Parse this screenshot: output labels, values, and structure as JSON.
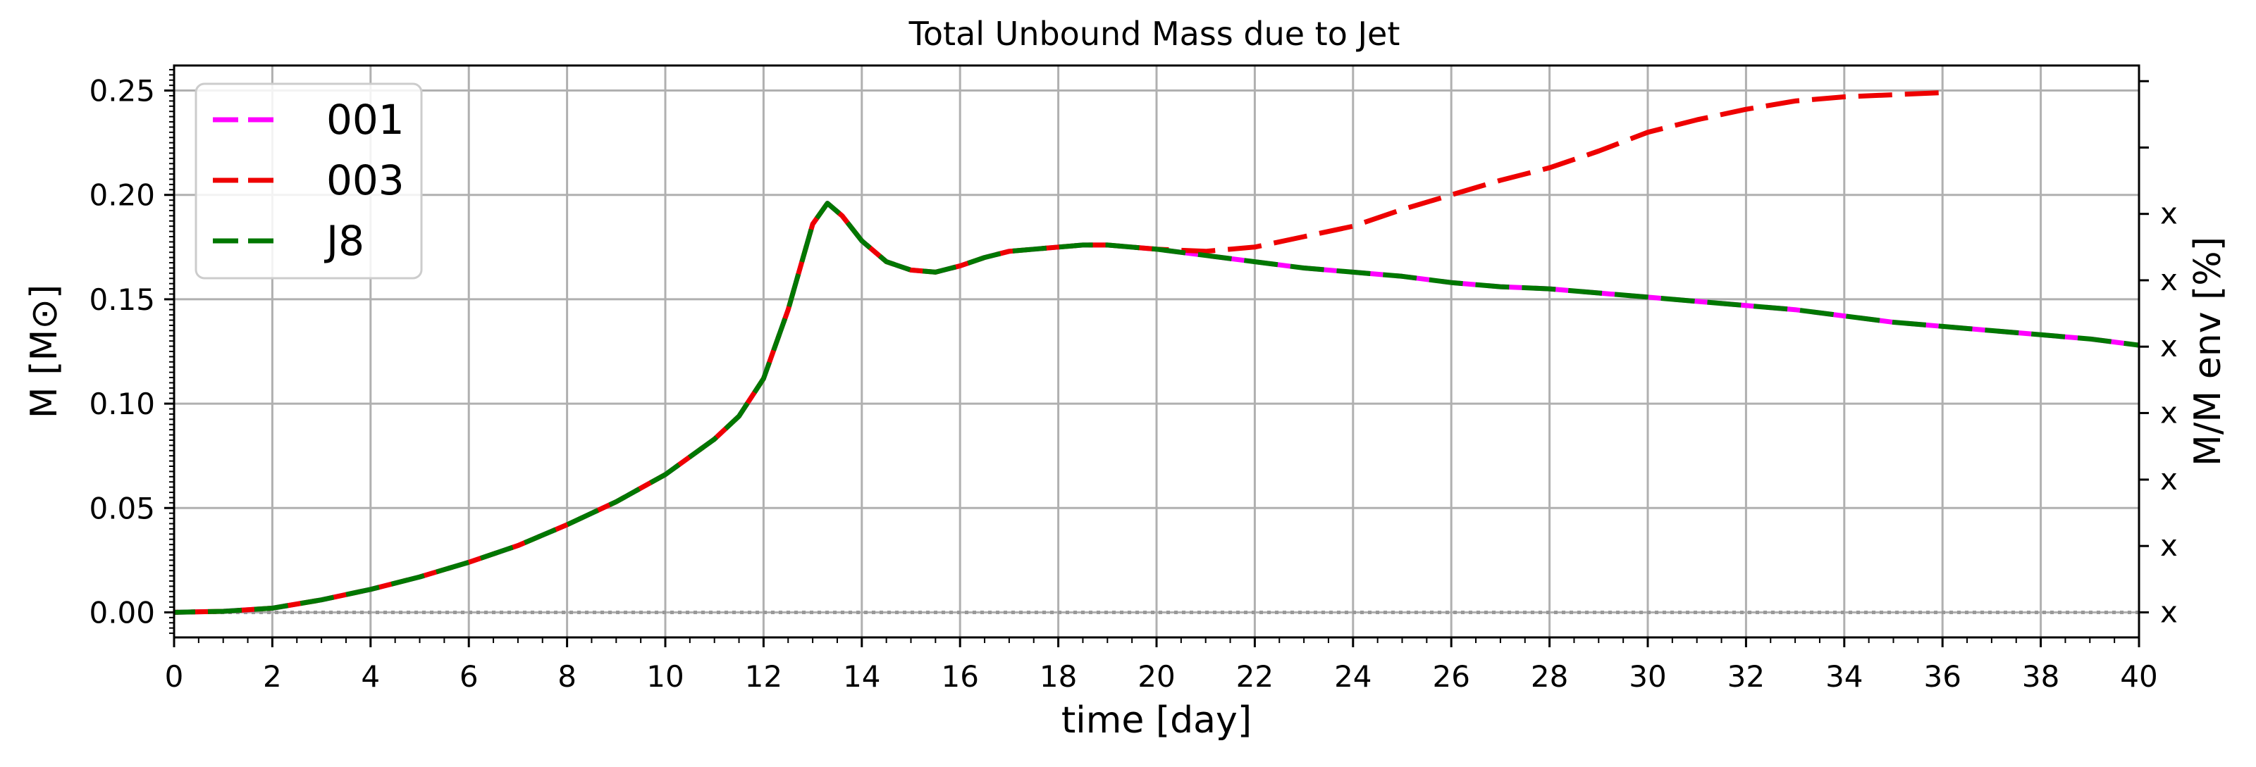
{
  "chart_data": {
    "type": "line",
    "title": "Total Unbound Mass due to Jet",
    "xlabel": "time [day]",
    "ylabel": "M [M⊙]",
    "ylabel_right": "M/M env [%]",
    "xlim": [
      0,
      40
    ],
    "ylim": [
      -0.012,
      0.262
    ],
    "x_ticks": [
      0,
      2,
      4,
      6,
      8,
      10,
      12,
      14,
      16,
      18,
      20,
      22,
      24,
      26,
      28,
      30,
      32,
      34,
      36,
      38,
      40
    ],
    "y_ticks": [
      0.0,
      0.05,
      0.1,
      0.15,
      0.2,
      0.25
    ],
    "y_tick_labels": [
      "0.00",
      "0.05",
      "0.10",
      "0.15",
      "0.20",
      "0.25"
    ],
    "right_ticks": [
      0.0,
      0.0318,
      0.0636,
      0.0955,
      0.1273,
      0.1591,
      0.1909,
      0.2227,
      0.2545
    ],
    "right_tick_labels": [
      "x",
      "x",
      "x",
      "x",
      "x",
      "x",
      "x",
      "",
      ""
    ],
    "grid": true,
    "legend_position": "upper-left",
    "baseline": {
      "y": 0.0,
      "color": "#999999",
      "style": "dotted"
    },
    "series": [
      {
        "name": "001",
        "color": "#ff00ff",
        "x": [
          0,
          1,
          2,
          3,
          4,
          5,
          6,
          7,
          8,
          9,
          10,
          11,
          11.5,
          12,
          12.5,
          13,
          13.3,
          13.6,
          14,
          14.5,
          15,
          15.5,
          16,
          16.5,
          17,
          17.5,
          18,
          18.5,
          19,
          20,
          21,
          22,
          23,
          24,
          25,
          26,
          27,
          28,
          29,
          30,
          31,
          32,
          33,
          34,
          35,
          36,
          37,
          38,
          39,
          40
        ],
        "values": [
          0.0,
          0.0005,
          0.002,
          0.006,
          0.011,
          0.017,
          0.024,
          0.032,
          0.042,
          0.053,
          0.066,
          0.083,
          0.094,
          0.112,
          0.145,
          0.186,
          0.196,
          0.19,
          0.178,
          0.168,
          0.164,
          0.163,
          0.166,
          0.17,
          0.173,
          0.174,
          0.175,
          0.176,
          0.176,
          0.174,
          0.171,
          0.168,
          0.165,
          0.163,
          0.161,
          0.158,
          0.156,
          0.155,
          0.153,
          0.151,
          0.149,
          0.147,
          0.145,
          0.142,
          0.139,
          0.137,
          0.135,
          0.133,
          0.131,
          0.128
        ]
      },
      {
        "name": "003",
        "color": "#ee0000",
        "x": [
          0,
          1,
          2,
          3,
          4,
          5,
          6,
          7,
          8,
          9,
          10,
          11,
          11.5,
          12,
          12.5,
          13,
          13.3,
          13.6,
          14,
          14.5,
          15,
          15.5,
          16,
          16.5,
          17,
          17.5,
          18,
          18.5,
          19,
          20,
          21,
          22,
          23,
          24,
          25,
          26,
          27,
          28,
          29,
          30,
          31,
          32,
          33,
          34,
          35,
          36
        ],
        "values": [
          0.0,
          0.0005,
          0.002,
          0.006,
          0.011,
          0.017,
          0.024,
          0.032,
          0.042,
          0.053,
          0.066,
          0.083,
          0.094,
          0.112,
          0.145,
          0.186,
          0.196,
          0.19,
          0.178,
          0.168,
          0.164,
          0.163,
          0.166,
          0.17,
          0.173,
          0.174,
          0.175,
          0.176,
          0.176,
          0.174,
          0.173,
          0.175,
          0.18,
          0.185,
          0.193,
          0.2,
          0.207,
          0.213,
          0.221,
          0.23,
          0.236,
          0.241,
          0.245,
          0.247,
          0.248,
          0.249
        ]
      },
      {
        "name": "J8",
        "color": "#007700",
        "x": [
          0,
          1,
          2,
          3,
          4,
          5,
          6,
          7,
          8,
          9,
          10,
          11,
          11.5,
          12,
          12.5,
          13,
          13.3,
          13.6,
          14,
          14.5,
          15,
          15.5,
          16,
          16.5,
          17,
          17.5,
          18,
          18.5,
          19,
          20,
          21,
          22,
          23,
          24,
          25,
          26,
          27,
          28,
          29,
          30,
          31,
          32,
          33,
          34,
          35,
          36,
          37,
          38,
          39,
          40
        ],
        "values": [
          0.0,
          0.0005,
          0.002,
          0.006,
          0.011,
          0.017,
          0.024,
          0.032,
          0.042,
          0.053,
          0.066,
          0.083,
          0.094,
          0.112,
          0.145,
          0.186,
          0.196,
          0.19,
          0.178,
          0.168,
          0.164,
          0.163,
          0.166,
          0.17,
          0.173,
          0.174,
          0.175,
          0.176,
          0.176,
          0.174,
          0.171,
          0.168,
          0.165,
          0.163,
          0.161,
          0.158,
          0.156,
          0.155,
          0.153,
          0.151,
          0.149,
          0.147,
          0.145,
          0.142,
          0.139,
          0.137,
          0.135,
          0.133,
          0.131,
          0.128
        ]
      }
    ]
  }
}
